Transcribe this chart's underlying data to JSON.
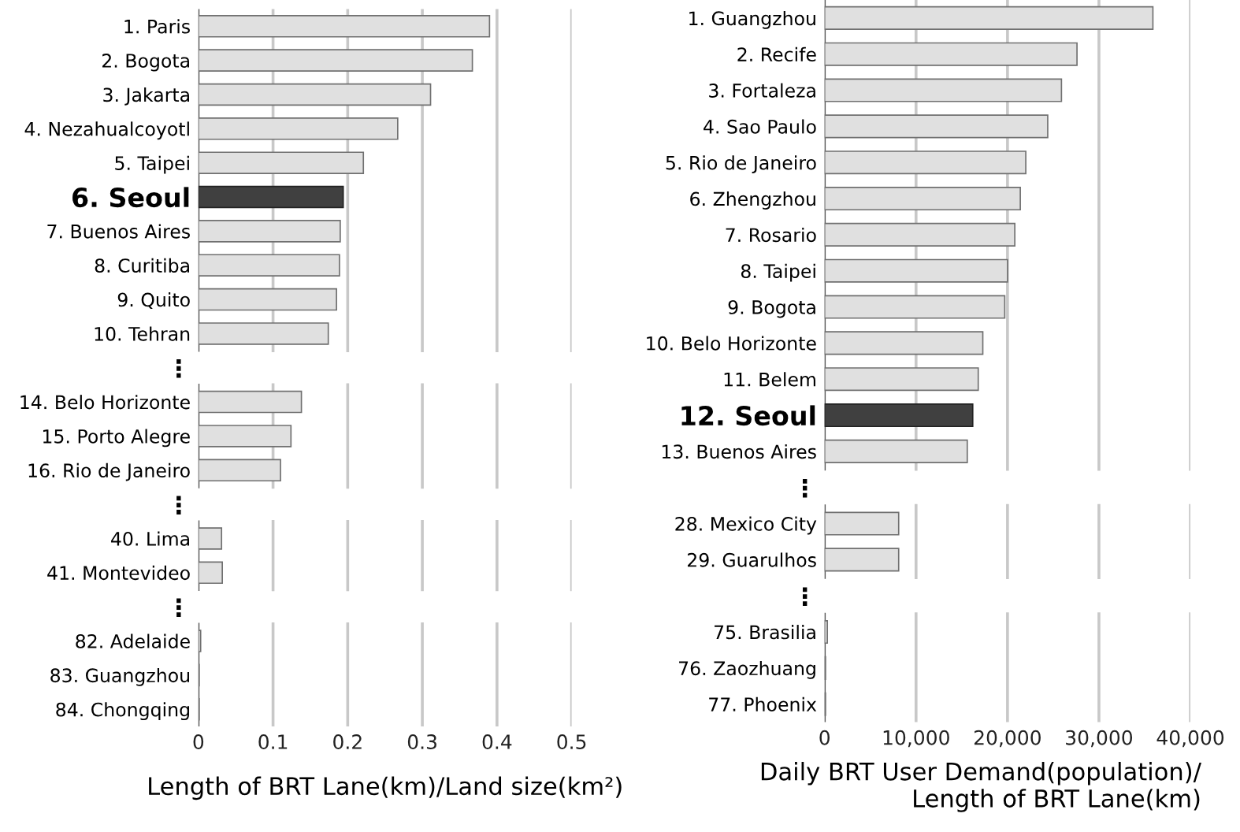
{
  "chart_data": [
    {
      "type": "bar",
      "orientation": "horizontal",
      "xlabel": "Length of BRT Lane(km)/Land size(km²)",
      "categories": [
        "1. Paris",
        "2. Bogota",
        "3. Jakarta",
        "4. Nezahualcoyotl",
        "5. Taipei",
        "6. Seoul",
        "7. Buenos Aires",
        "8. Curitiba",
        "9. Quito",
        "10. Tehran",
        "⋮",
        "14. Belo Horizonte",
        "15. Porto Alegre",
        "16. Rio de Janeiro",
        "⋮",
        "40. Lima",
        "41. Montevideo",
        "⋮",
        "82. Adelaide",
        "83. Guangzhou",
        "84. Chongqing"
      ],
      "values": [
        0.39,
        0.367,
        0.311,
        0.267,
        0.221,
        0.194,
        0.19,
        0.189,
        0.185,
        0.174,
        null,
        0.138,
        0.124,
        0.11,
        null,
        0.031,
        0.032,
        null,
        0.003,
        0.001,
        0.001
      ],
      "colors": [
        "#e0e0e0",
        "#e0e0e0",
        "#e0e0e0",
        "#e0e0e0",
        "#e0e0e0",
        "#404040",
        "#e0e0e0",
        "#e0e0e0",
        "#e0e0e0",
        "#e0e0e0",
        null,
        "#e0e0e0",
        "#e0e0e0",
        "#e0e0e0",
        null,
        "#e0e0e0",
        "#e0e0e0",
        null,
        "#e0e0e0",
        "#e0e0e0",
        "#e0e0e0"
      ],
      "xlim": [
        0,
        0.5
      ],
      "xticks": [
        0,
        0.1,
        0.2,
        0.3,
        0.4,
        0.5
      ],
      "grid": "x"
    },
    {
      "type": "bar",
      "orientation": "horizontal",
      "xlabel": "Daily BRT User Demand(population)/\nLength of BRT Lane(km)",
      "categories": [
        "1. Guangzhou",
        "2. Recife",
        "3. Fortaleza",
        "4. Sao Paulo",
        "5. Rio de Janeiro",
        "6. Zhengzhou",
        "7. Rosario",
        "8. Taipei",
        "9. Bogota",
        "10. Belo Horizonte",
        "11. Belem",
        "12. Seoul",
        "13. Buenos Aires",
        "⋮",
        "28. Mexico City",
        "29. Guarulhos",
        "⋮",
        "75. Brasilia",
        "76. Zaozhuang",
        "77. Phoenix"
      ],
      "values": [
        35900,
        27600,
        25900,
        24400,
        22000,
        21400,
        20800,
        20000,
        19700,
        17300,
        16800,
        16200,
        15600,
        null,
        8100,
        8100,
        null,
        300,
        100,
        100
      ],
      "colors": [
        "#e0e0e0",
        "#e0e0e0",
        "#e0e0e0",
        "#e0e0e0",
        "#e0e0e0",
        "#e0e0e0",
        "#e0e0e0",
        "#e0e0e0",
        "#e0e0e0",
        "#e0e0e0",
        "#e0e0e0",
        "#404040",
        "#e0e0e0",
        null,
        "#e0e0e0",
        "#e0e0e0",
        null,
        "#e0e0e0",
        "#e0e0e0",
        "#e0e0e0"
      ],
      "xlim": [
        0,
        40000
      ],
      "xticks": [
        0,
        {
          "value": 10000,
          "label": "10,000"
        },
        {
          "value": 20000,
          "label": "20,000"
        },
        {
          "value": 30000,
          "label": "30,000"
        },
        {
          "value": 40000,
          "label": "40,000"
        }
      ],
      "grid": "x"
    }
  ]
}
